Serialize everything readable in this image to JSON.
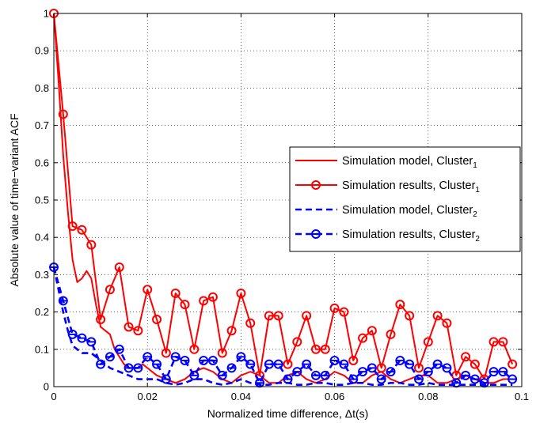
{
  "chart_data": {
    "type": "line",
    "title": "",
    "xlabel": "Normalized time difference, Δt(s)",
    "ylabel": "Absolute value of time−variant ACF",
    "xlim": [
      0,
      0.1
    ],
    "ylim": [
      0,
      1
    ],
    "xticks": [
      0,
      0.02,
      0.04,
      0.06,
      0.08,
      0.1
    ],
    "xtick_labels": [
      "0",
      "0.02",
      "0.04",
      "0.06",
      "0.08",
      "0.1"
    ],
    "yticks": [
      0,
      0.1,
      0.2,
      0.3,
      0.4,
      0.5,
      0.6,
      0.7,
      0.8,
      0.9,
      1
    ],
    "ytick_labels": [
      "0",
      "0.1",
      "0.2",
      "0.3",
      "0.4",
      "0.5",
      "0.6",
      "0.7",
      "0.8",
      "0.9",
      "1"
    ],
    "grid": true,
    "legend_position": "right",
    "colors": {
      "red": "#ff0000",
      "blue": "#0000ff"
    },
    "series": [
      {
        "name": "Simulation model, Cluster",
        "name_sub": "1",
        "style": "solid",
        "color": "#ff0000",
        "marker": "none",
        "x": [
          0,
          0.001,
          0.002,
          0.003,
          0.004,
          0.005,
          0.006,
          0.007,
          0.008,
          0.009,
          0.01,
          0.011,
          0.012,
          0.013,
          0.014,
          0.015,
          0.016,
          0.017,
          0.018,
          0.019,
          0.02,
          0.022,
          0.024,
          0.026,
          0.028,
          0.03,
          0.032,
          0.034,
          0.036,
          0.038,
          0.04,
          0.042,
          0.044,
          0.046,
          0.048,
          0.05,
          0.052,
          0.054,
          0.056,
          0.058,
          0.06,
          0.062,
          0.064,
          0.066,
          0.068,
          0.07,
          0.072,
          0.074,
          0.076,
          0.078,
          0.08,
          0.082,
          0.084,
          0.086,
          0.088,
          0.09,
          0.092,
          0.094,
          0.096,
          0.098
        ],
        "y": [
          1.0,
          0.82,
          0.62,
          0.47,
          0.34,
          0.28,
          0.29,
          0.31,
          0.29,
          0.22,
          0.16,
          0.15,
          0.14,
          0.1,
          0.08,
          0.06,
          0.05,
          0.05,
          0.05,
          0.06,
          0.05,
          0.03,
          0.02,
          0.01,
          0.02,
          0.04,
          0.05,
          0.04,
          0.02,
          0.01,
          0.03,
          0.04,
          0.03,
          0.01,
          0.01,
          0.03,
          0.04,
          0.02,
          0.01,
          0.02,
          0.04,
          0.03,
          0.01,
          0.01,
          0.03,
          0.04,
          0.02,
          0.01,
          0.02,
          0.03,
          0.03,
          0.01,
          0.01,
          0.02,
          0.03,
          0.02,
          0.01,
          0.01,
          0.02,
          0.02
        ]
      },
      {
        "name": "Simulation results, Cluster",
        "name_sub": "1",
        "style": "solid",
        "color": "#ff0000",
        "marker": "circle",
        "x": [
          0,
          0.002,
          0.004,
          0.006,
          0.008,
          0.01,
          0.012,
          0.014,
          0.016,
          0.018,
          0.02,
          0.022,
          0.024,
          0.026,
          0.028,
          0.03,
          0.032,
          0.034,
          0.036,
          0.038,
          0.04,
          0.042,
          0.044,
          0.046,
          0.048,
          0.05,
          0.052,
          0.054,
          0.056,
          0.058,
          0.06,
          0.062,
          0.064,
          0.066,
          0.068,
          0.07,
          0.072,
          0.074,
          0.076,
          0.078,
          0.08,
          0.082,
          0.084,
          0.086,
          0.088,
          0.09,
          0.092,
          0.094,
          0.096,
          0.098
        ],
        "y": [
          1.0,
          0.73,
          0.43,
          0.42,
          0.38,
          0.18,
          0.26,
          0.32,
          0.16,
          0.15,
          0.26,
          0.18,
          0.09,
          0.25,
          0.22,
          0.1,
          0.23,
          0.24,
          0.09,
          0.15,
          0.25,
          0.17,
          0.03,
          0.19,
          0.19,
          0.06,
          0.12,
          0.19,
          0.1,
          0.1,
          0.21,
          0.2,
          0.07,
          0.13,
          0.15,
          0.05,
          0.14,
          0.22,
          0.19,
          0.05,
          0.12,
          0.19,
          0.17,
          0.03,
          0.08,
          0.06,
          0.02,
          0.12,
          0.12,
          0.06
        ]
      },
      {
        "name": "Simulation model, Cluster",
        "name_sub": "2",
        "style": "dashed",
        "color": "#0000ff",
        "marker": "none",
        "x": [
          0,
          0.001,
          0.002,
          0.003,
          0.004,
          0.005,
          0.006,
          0.008,
          0.01,
          0.012,
          0.014,
          0.016,
          0.018,
          0.02,
          0.022,
          0.024,
          0.026,
          0.028,
          0.03,
          0.032,
          0.034,
          0.036,
          0.038,
          0.04,
          0.042,
          0.044,
          0.046,
          0.048,
          0.05,
          0.052,
          0.054,
          0.056,
          0.058,
          0.06,
          0.062,
          0.064,
          0.066,
          0.068,
          0.07,
          0.072,
          0.074,
          0.076,
          0.078,
          0.08,
          0.082,
          0.084,
          0.086,
          0.088,
          0.09,
          0.092,
          0.094,
          0.096,
          0.098
        ],
        "y": [
          0.32,
          0.26,
          0.2,
          0.15,
          0.11,
          0.1,
          0.09,
          0.09,
          0.07,
          0.05,
          0.04,
          0.03,
          0.02,
          0.02,
          0.02,
          0.01,
          0.005,
          0.01,
          0.02,
          0.02,
          0.01,
          0.005,
          0.01,
          0.02,
          0.01,
          0.005,
          0.005,
          0.01,
          0.01,
          0.005,
          0.005,
          0.01,
          0.01,
          0.005,
          0.005,
          0.01,
          0.01,
          0.005,
          0.005,
          0.01,
          0.01,
          0.005,
          0.005,
          0.01,
          0.005,
          0.005,
          0.005,
          0.005,
          0.005,
          0.005,
          0.005,
          0.005,
          0.005
        ]
      },
      {
        "name": "Simulation results, Cluster",
        "name_sub": "2",
        "style": "dashed",
        "color": "#0000ff",
        "marker": "circle-bar",
        "x": [
          0,
          0.002,
          0.004,
          0.006,
          0.008,
          0.01,
          0.012,
          0.014,
          0.016,
          0.018,
          0.02,
          0.022,
          0.024,
          0.026,
          0.028,
          0.03,
          0.032,
          0.034,
          0.036,
          0.038,
          0.04,
          0.042,
          0.044,
          0.046,
          0.048,
          0.05,
          0.052,
          0.054,
          0.056,
          0.058,
          0.06,
          0.062,
          0.064,
          0.066,
          0.068,
          0.07,
          0.072,
          0.074,
          0.076,
          0.078,
          0.08,
          0.082,
          0.084,
          0.086,
          0.088,
          0.09,
          0.092,
          0.094,
          0.096,
          0.098
        ],
        "y": [
          0.32,
          0.23,
          0.14,
          0.13,
          0.12,
          0.06,
          0.08,
          0.1,
          0.05,
          0.05,
          0.08,
          0.06,
          0.02,
          0.08,
          0.07,
          0.03,
          0.07,
          0.07,
          0.03,
          0.05,
          0.08,
          0.06,
          0.01,
          0.06,
          0.06,
          0.02,
          0.04,
          0.06,
          0.03,
          0.03,
          0.07,
          0.06,
          0.02,
          0.04,
          0.05,
          0.02,
          0.04,
          0.07,
          0.06,
          0.02,
          0.04,
          0.06,
          0.05,
          0.01,
          0.03,
          0.02,
          0.01,
          0.04,
          0.04,
          0.02
        ]
      }
    ]
  }
}
